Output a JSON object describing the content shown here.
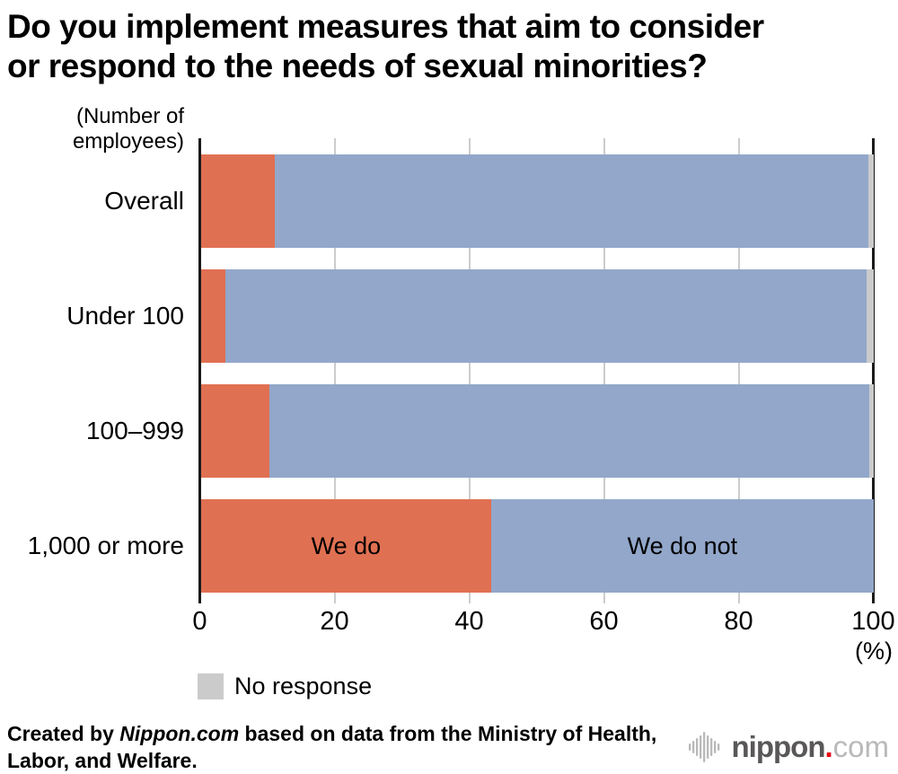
{
  "page": {
    "title_lines": [
      "Do you implement measures that aim to consider",
      "or respond to the needs of sexual minorities?"
    ]
  },
  "chart_data": {
    "type": "bar",
    "subtype": "horizontal-stacked",
    "title": "Do you implement measures that aim to consider or respond to the needs of sexual minorities?",
    "y_axis_unit_lines": [
      "(Number of",
      "employees)"
    ],
    "x_axis_unit_label": "(%)",
    "xlim": [
      0,
      100
    ],
    "x_ticks": [
      0,
      20,
      40,
      60,
      80,
      100
    ],
    "grid": true,
    "categories": [
      "Overall",
      "Under 100",
      "100–999",
      "1,000 or more"
    ],
    "series": [
      {
        "name": "We do",
        "color": "#e07052",
        "values": [
          10.9,
          3.6,
          10.1,
          43.1
        ]
      },
      {
        "name": "We do not",
        "color": "#92a7ca",
        "values": [
          88.3,
          95.4,
          89.3,
          56.9
        ]
      },
      {
        "name": "No response",
        "color": "#cbcbcb",
        "values": [
          0.8,
          1.0,
          0.6,
          0.0
        ]
      }
    ],
    "in_bar_label_row": 3,
    "legend_position": "bottom-left",
    "axis_color": "#1a1a1a",
    "gridline_color": "#cccccc"
  },
  "legend": {
    "no_response_label": "No response"
  },
  "footer": {
    "credit_prefix": "Created by ",
    "credit_source": "Nippon.com",
    "credit_suffix": " based on data from the Ministry of Health, Labor, and Welfare.",
    "logo_name": "nippon",
    "logo_dot": ".",
    "logo_tld": "com"
  }
}
